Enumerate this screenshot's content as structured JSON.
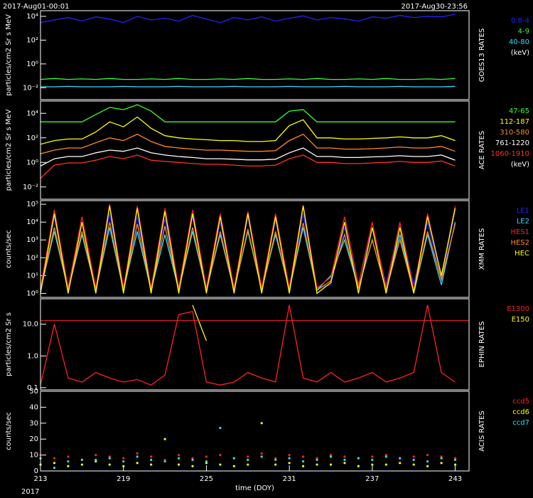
{
  "header": {
    "start": "2017-Aug01-00:01",
    "end": "2017-Aug30-23:56"
  },
  "footer": {
    "year": "2017"
  },
  "chart_data": [
    {
      "type": "line",
      "title": "GOES13 RATES",
      "y_label": "particles/cm2 Sr s MeV",
      "log_y": true,
      "legend_unit": "(keV)",
      "xlim": [
        213,
        244
      ],
      "ylim": [
        0.001,
        30000
      ],
      "yticks": [
        {
          "value": 0.01,
          "label": "10⁻²"
        },
        {
          "value": 1,
          "label": "10⁰"
        },
        {
          "value": 100,
          "label": "10²"
        },
        {
          "value": 10000,
          "label": "10⁴"
        }
      ],
      "x": [
        213,
        214,
        215,
        216,
        217,
        218,
        219,
        220,
        221,
        222,
        223,
        224,
        225,
        226,
        227,
        228,
        229,
        230,
        231,
        232,
        233,
        234,
        235,
        236,
        237,
        238,
        239,
        240,
        241,
        242,
        243
      ],
      "series": [
        {
          "name": "0.8-4",
          "color": "#2222ff",
          "values": [
            3000,
            5000,
            8000,
            4000,
            9000,
            6000,
            3000,
            10000,
            5000,
            7000,
            4000,
            12000,
            6000,
            3000,
            8000,
            5000,
            9000,
            4000,
            7000,
            11000,
            5000,
            8000,
            6000,
            4000,
            9000,
            7000,
            12000,
            8000,
            10000,
            9000,
            15000
          ]
        },
        {
          "name": "4-9",
          "color": "#33ff33",
          "values": [
            0.05,
            0.06,
            0.05,
            0.055,
            0.05,
            0.06,
            0.05,
            0.05,
            0.055,
            0.05,
            0.06,
            0.05,
            0.05,
            0.055,
            0.05,
            0.06,
            0.05,
            0.05,
            0.055,
            0.05,
            0.06,
            0.05,
            0.05,
            0.055,
            0.05,
            0.06,
            0.05,
            0.05,
            0.055,
            0.05,
            0.06
          ]
        },
        {
          "name": "40-80",
          "color": "#33ddff",
          "values": [
            0.012,
            0.012,
            0.013,
            0.012,
            0.012,
            0.012,
            0.013,
            0.012,
            0.012,
            0.012,
            0.013,
            0.012,
            0.012,
            0.012,
            0.013,
            0.012,
            0.012,
            0.012,
            0.013,
            0.012,
            0.012,
            0.012,
            0.013,
            0.012,
            0.012,
            0.012,
            0.013,
            0.012,
            0.012,
            0.012,
            0.013
          ]
        }
      ]
    },
    {
      "type": "line",
      "title": "ACE RATES",
      "y_label": "particles/cm2 Sr s MeV",
      "log_y": true,
      "legend_unit": "(keV)",
      "xlim": [
        213,
        244
      ],
      "ylim": [
        0.001,
        100000
      ],
      "yticks": [
        {
          "value": 0.01,
          "label": "10⁻²"
        },
        {
          "value": 1,
          "label": "10⁰"
        },
        {
          "value": 100,
          "label": "10²"
        },
        {
          "value": 10000,
          "label": "10⁴"
        }
      ],
      "x": [
        213,
        214,
        215,
        216,
        217,
        218,
        219,
        220,
        221,
        222,
        223,
        224,
        225,
        226,
        227,
        228,
        229,
        230,
        231,
        232,
        233,
        234,
        235,
        236,
        237,
        238,
        239,
        240,
        241,
        242,
        243
      ],
      "series": [
        {
          "name": "47-65",
          "color": "#33ff33",
          "values": [
            2000,
            2000,
            2000,
            2000,
            8000,
            30000,
            20000,
            50000,
            15000,
            2000,
            2000,
            2000,
            2000,
            2000,
            2000,
            2000,
            2000,
            2000,
            15000,
            20000,
            2000,
            2000,
            2000,
            2000,
            2000,
            2000,
            2000,
            2000,
            2000,
            2000,
            2000
          ]
        },
        {
          "name": "112-187",
          "color": "#ffff00",
          "values": [
            30,
            60,
            80,
            80,
            300,
            2000,
            800,
            5000,
            600,
            150,
            100,
            80,
            70,
            60,
            60,
            50,
            50,
            60,
            1000,
            3000,
            100,
            100,
            80,
            80,
            90,
            100,
            120,
            100,
            100,
            150,
            60
          ]
        },
        {
          "name": "310-580",
          "color": "#ff8822",
          "values": [
            5,
            10,
            15,
            15,
            40,
            100,
            60,
            200,
            50,
            20,
            15,
            12,
            10,
            10,
            9,
            8,
            8,
            9,
            60,
            200,
            15,
            15,
            12,
            12,
            13,
            15,
            18,
            15,
            15,
            20,
            8
          ]
        },
        {
          "name": "761-1220",
          "color": "#ffffff",
          "values": [
            0.5,
            2,
            3,
            3,
            6,
            10,
            8,
            15,
            6,
            4,
            3,
            2.5,
            2,
            2,
            1.8,
            1.6,
            1.6,
            1.8,
            6,
            15,
            3,
            3,
            2.5,
            2.5,
            2.8,
            3,
            3.5,
            3,
            3,
            4,
            1.5
          ]
        },
        {
          "name": "1060-1910",
          "color": "#ff3322",
          "values": [
            0.05,
            0.6,
            0.9,
            0.9,
            1.5,
            3,
            2,
            4,
            1.5,
            1.2,
            1,
            0.8,
            0.7,
            0.7,
            0.6,
            0.5,
            0.5,
            0.6,
            2,
            4,
            1,
            1,
            0.8,
            0.8,
            0.9,
            1,
            1.2,
            1,
            1,
            1.3,
            0.5
          ]
        }
      ]
    },
    {
      "type": "line",
      "title": "XMM RATES",
      "y_label": "counts/sec",
      "log_y": true,
      "xlim": [
        213,
        244
      ],
      "ylim": [
        0.6,
        160000
      ],
      "yticks": [
        {
          "value": 1,
          "label": "10⁰"
        },
        {
          "value": 10,
          "label": "10¹"
        },
        {
          "value": 100,
          "label": "10²"
        },
        {
          "value": 1000,
          "label": "10³"
        },
        {
          "value": 10000,
          "label": "10⁴"
        },
        {
          "value": 100000,
          "label": "10⁵"
        }
      ],
      "x": [
        213,
        214,
        215,
        216,
        217,
        218,
        219,
        220,
        221,
        222,
        223,
        224,
        225,
        226,
        227,
        228,
        229,
        230,
        231,
        232,
        233,
        234,
        235,
        236,
        237,
        238,
        239,
        240,
        241,
        242,
        243
      ],
      "series": [
        {
          "name": "LE1",
          "color": "#2222ff",
          "values": [
            2,
            20000,
            2,
            10000,
            2,
            30000,
            2,
            20000,
            2,
            15000,
            2,
            20000,
            2,
            10000,
            2,
            20000,
            2,
            15000,
            2,
            30000,
            2,
            3,
            5000,
            3,
            5000,
            3,
            8000,
            3,
            10000,
            5,
            50000
          ]
        },
        {
          "name": "LE2",
          "color": "#33ddff",
          "values": [
            1.5,
            3000,
            1.5,
            2000,
            1.5,
            5000,
            1.5,
            3000,
            1.5,
            2000,
            1.5,
            3000,
            1.5,
            2000,
            1.5,
            3000,
            1.5,
            2000,
            1.5,
            5000,
            1.5,
            10,
            1000,
            2,
            1000,
            1.5,
            2000,
            1,
            2000,
            3,
            10000
          ]
        },
        {
          "name": "HES1",
          "color": "#ff2222",
          "values": [
            2,
            50000,
            2,
            20000,
            2,
            100000,
            2,
            80000,
            2,
            60000,
            2,
            50000,
            2,
            30000,
            2,
            40000,
            2,
            30000,
            2,
            90000,
            2,
            8,
            20000,
            3,
            10000,
            2,
            10000,
            1.5,
            30000,
            8,
            80000
          ]
        },
        {
          "name": "HES2",
          "color": "#ff8822",
          "values": [
            1.5,
            5000,
            1.5,
            3000,
            1.5,
            10000,
            1.5,
            8000,
            1.5,
            6000,
            1.5,
            5000,
            1.5,
            3000,
            1.5,
            4000,
            1.5,
            3000,
            1.5,
            9000,
            1.5,
            5,
            2000,
            2,
            1000,
            1.5,
            1000,
            1.2,
            3000,
            6,
            8000
          ]
        },
        {
          "name": "HEC",
          "color": "#ffff00",
          "values": [
            1,
            30000,
            1,
            10000,
            1,
            80000,
            1,
            60000,
            1,
            40000,
            1,
            30000,
            1,
            20000,
            1,
            30000,
            1,
            20000,
            1,
            80000,
            1,
            4,
            10000,
            1,
            5000,
            1,
            5000,
            1,
            20000,
            10,
            60000
          ]
        }
      ]
    },
    {
      "type": "line",
      "title": "EPHIN RATES",
      "y_label": "particles/cm2 Sr s",
      "log_y": true,
      "xlim": [
        213,
        244
      ],
      "ylim": [
        0.085,
        63
      ],
      "hline": 13,
      "hline_color": "#ff2222",
      "yticks": [
        0.1,
        {
          "value": 1,
          "label": "1.0"
        },
        {
          "value": 10,
          "label": "10.0"
        }
      ],
      "x": [
        213,
        214,
        215,
        216,
        217,
        218,
        219,
        220,
        221,
        222,
        223,
        224,
        225,
        226,
        227,
        228,
        229,
        230,
        231,
        232,
        233,
        234,
        235,
        236,
        237,
        238,
        239,
        240,
        241,
        242,
        243
      ],
      "series": [
        {
          "name": "E1300",
          "color": "#ff2222",
          "values": [
            0.12,
            10,
            0.2,
            0.15,
            0.3,
            0.2,
            0.15,
            0.18,
            0.12,
            0.25,
            20,
            25,
            0.15,
            0.12,
            0.15,
            0.3,
            0.2,
            0.15,
            40,
            0.2,
            0.15,
            0.3,
            0.15,
            0.2,
            0.3,
            0.15,
            0.2,
            0.3,
            40,
            0.3,
            0.15
          ]
        },
        {
          "name": "E150",
          "color": "#ffff00",
          "values": [
            null,
            null,
            null,
            null,
            null,
            null,
            null,
            null,
            null,
            null,
            null,
            40,
            3,
            null,
            null,
            null,
            null,
            null,
            null,
            null,
            null,
            null,
            null,
            null,
            null,
            null,
            null,
            null,
            null,
            null,
            null
          ]
        }
      ]
    },
    {
      "type": "scatter",
      "title": "ACIS RATES",
      "y_label": "counts/sec",
      "log_y": false,
      "xlim": [
        213,
        244
      ],
      "ylim": [
        0,
        50
      ],
      "yticks": [
        0,
        10,
        20,
        30,
        40,
        50
      ],
      "xticks": [
        213,
        219,
        225,
        231,
        237,
        243
      ],
      "x_label": "time (DOY)",
      "x": [
        213,
        214,
        215,
        216,
        217,
        218,
        219,
        220,
        221,
        222,
        223,
        224,
        225,
        226,
        227,
        228,
        229,
        230,
        231,
        232,
        233,
        234,
        235,
        236,
        237,
        238,
        239,
        240,
        241,
        242,
        243
      ],
      "series": [
        {
          "name": "ccd5",
          "color": "#ff2222",
          "values": [
            10,
            8,
            9,
            7,
            10,
            9,
            8,
            11,
            9,
            7,
            10,
            8,
            9,
            10,
            8,
            9,
            11,
            8,
            10,
            9,
            8,
            10,
            9,
            8,
            9,
            10,
            8,
            9,
            10,
            9,
            8
          ]
        },
        {
          "name": "ccd6",
          "color": "#ffff00",
          "values": [
            4,
            5,
            3,
            4,
            6,
            4,
            3,
            5,
            4,
            20,
            4,
            3,
            5,
            4,
            3,
            4,
            30,
            4,
            5,
            3,
            4,
            4,
            5,
            3,
            4,
            4,
            5,
            4,
            3,
            5,
            4
          ]
        },
        {
          "name": "ccd7",
          "color": "#33ddff",
          "values": [
            8,
            2,
            6,
            7,
            7,
            8,
            6,
            9,
            7,
            6,
            8,
            7,
            6,
            27,
            8,
            7,
            9,
            7,
            8,
            6,
            7,
            9,
            7,
            8,
            7,
            9,
            8,
            7,
            6,
            8,
            7
          ]
        }
      ]
    }
  ]
}
